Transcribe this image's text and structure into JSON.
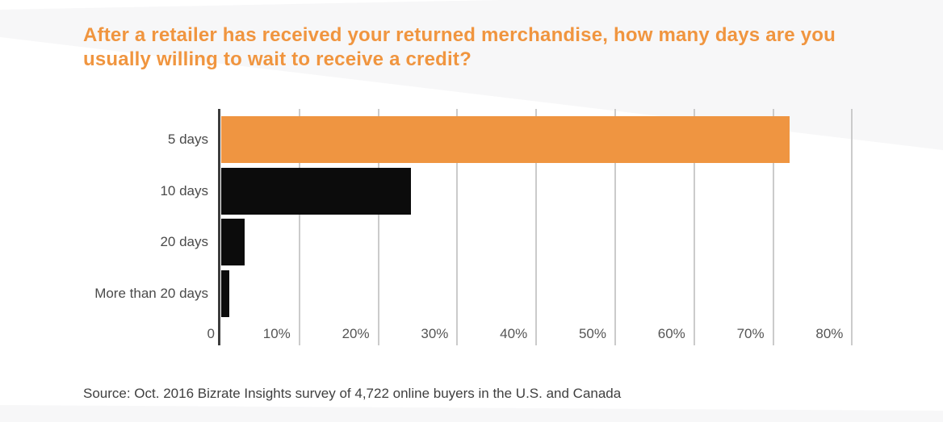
{
  "title": {
    "line1": "After a retailer has received your returned merchandise, how many days are you",
    "line2": "usually willing to wait to receive a credit?"
  },
  "source": "Source: Oct. 2016 Bizrate Insights survey of 4,722 online buyers in the U.S. and Canada",
  "colors": {
    "background_gray": "#f7f7f8",
    "panel_white": "#ffffff",
    "title_orange": "#f0953f",
    "bar_orange": "#ef9541",
    "bar_black": "#0c0c0c",
    "gridline": "#cbcbcb",
    "axis": "#3d3d3d",
    "category_label": "#4a4a4a",
    "tick_label": "#555555",
    "source_text": "#3f3f3f"
  },
  "chart_data": {
    "type": "bar",
    "orientation": "horizontal",
    "title": "After a retailer has received your returned merchandise, how many days are you usually willing to wait to receive a credit?",
    "categories": [
      "5 days",
      "10 days",
      "20 days",
      "More than 20 days"
    ],
    "values": [
      72,
      24,
      3,
      1
    ],
    "unit": "%",
    "bar_colors": [
      "#ef9541",
      "#0c0c0c",
      "#0c0c0c",
      "#0c0c0c"
    ],
    "x_ticks": [
      {
        "label": "0",
        "value": 0
      },
      {
        "label": "10%",
        "value": 10
      },
      {
        "label": "20%",
        "value": 20
      },
      {
        "label": "30%",
        "value": 30
      },
      {
        "label": "40%",
        "value": 40
      },
      {
        "label": "50%",
        "value": 50
      },
      {
        "label": "60%",
        "value": 60
      },
      {
        "label": "70%",
        "value": 70
      },
      {
        "label": "80%",
        "value": 80
      }
    ],
    "xlim": [
      0,
      83
    ],
    "grid": true,
    "legend": false,
    "xlabel": "",
    "ylabel": ""
  }
}
